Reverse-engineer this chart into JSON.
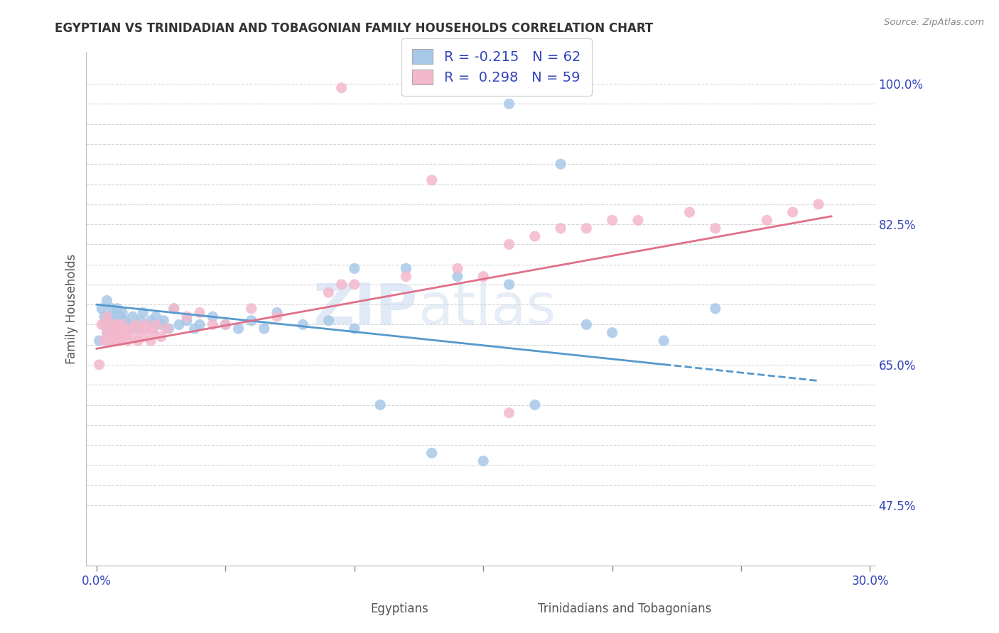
{
  "title": "EGYPTIAN VS TRINIDADIAN AND TOBAGONIAN FAMILY HOUSEHOLDS CORRELATION CHART",
  "source": "Source: ZipAtlas.com",
  "xlabel_egyptians": "Egyptians",
  "xlabel_trinidadians": "Trinidadians and Tobagonians",
  "ylabel": "Family Households",
  "watermark_part1": "ZIP",
  "watermark_part2": "atlas",
  "xmin": 0.0,
  "xmax": 0.3,
  "ymin": 0.4,
  "ymax": 1.03,
  "blue_color": "#a8c8e8",
  "pink_color": "#f4b8cc",
  "blue_line_color": "#5599cc",
  "pink_line_color": "#e07088",
  "R_egyptian": -0.215,
  "N_egyptian": 62,
  "R_trinidadian": 0.298,
  "N_trinidadian": 59,
  "legend_text_color": "#3344bb",
  "title_color": "#333333",
  "eg_x": [
    0.001,
    0.002,
    0.003,
    0.003,
    0.004,
    0.004,
    0.005,
    0.005,
    0.006,
    0.006,
    0.007,
    0.007,
    0.008,
    0.008,
    0.009,
    0.009,
    0.01,
    0.01,
    0.011,
    0.012,
    0.013,
    0.014,
    0.015,
    0.016,
    0.017,
    0.018,
    0.019,
    0.02,
    0.021,
    0.022,
    0.023,
    0.025,
    0.026,
    0.028,
    0.03,
    0.032,
    0.035,
    0.038,
    0.04,
    0.045,
    0.05,
    0.055,
    0.06,
    0.065,
    0.07,
    0.08,
    0.09,
    0.1,
    0.11,
    0.13,
    0.15,
    0.17,
    0.19,
    0.1,
    0.12,
    0.14,
    0.16,
    0.2,
    0.22,
    0.16,
    0.18,
    0.24
  ],
  "eg_y": [
    0.68,
    0.72,
    0.7,
    0.71,
    0.69,
    0.73,
    0.68,
    0.71,
    0.72,
    0.7,
    0.69,
    0.71,
    0.68,
    0.72,
    0.7,
    0.71,
    0.695,
    0.715,
    0.705,
    0.7,
    0.695,
    0.71,
    0.7,
    0.695,
    0.705,
    0.715,
    0.695,
    0.7,
    0.705,
    0.695,
    0.71,
    0.7,
    0.705,
    0.695,
    0.72,
    0.7,
    0.705,
    0.695,
    0.7,
    0.71,
    0.7,
    0.695,
    0.705,
    0.695,
    0.715,
    0.7,
    0.705,
    0.695,
    0.6,
    0.54,
    0.53,
    0.6,
    0.7,
    0.77,
    0.77,
    0.76,
    0.75,
    0.69,
    0.68,
    0.975,
    0.9,
    0.72
  ],
  "tr_x": [
    0.001,
    0.002,
    0.003,
    0.003,
    0.004,
    0.004,
    0.005,
    0.006,
    0.006,
    0.007,
    0.007,
    0.008,
    0.008,
    0.009,
    0.009,
    0.01,
    0.01,
    0.011,
    0.012,
    0.013,
    0.014,
    0.015,
    0.016,
    0.017,
    0.018,
    0.019,
    0.02,
    0.021,
    0.022,
    0.023,
    0.025,
    0.027,
    0.03,
    0.035,
    0.04,
    0.045,
    0.05,
    0.06,
    0.07,
    0.09,
    0.095,
    0.1,
    0.12,
    0.14,
    0.15,
    0.16,
    0.17,
    0.18,
    0.19,
    0.2,
    0.21,
    0.23,
    0.24,
    0.26,
    0.27,
    0.28,
    0.095,
    0.13,
    0.16
  ],
  "tr_y": [
    0.65,
    0.7,
    0.68,
    0.7,
    0.69,
    0.71,
    0.68,
    0.69,
    0.7,
    0.68,
    0.695,
    0.685,
    0.7,
    0.68,
    0.695,
    0.685,
    0.7,
    0.69,
    0.68,
    0.695,
    0.685,
    0.7,
    0.68,
    0.695,
    0.685,
    0.7,
    0.695,
    0.68,
    0.69,
    0.7,
    0.685,
    0.695,
    0.72,
    0.71,
    0.715,
    0.7,
    0.7,
    0.72,
    0.71,
    0.74,
    0.75,
    0.75,
    0.76,
    0.77,
    0.76,
    0.8,
    0.81,
    0.82,
    0.82,
    0.83,
    0.83,
    0.84,
    0.82,
    0.83,
    0.84,
    0.85,
    0.995,
    0.88,
    0.59
  ],
  "blue_line_x": [
    0.0,
    0.28
  ],
  "blue_line_y": [
    0.725,
    0.63
  ],
  "pink_line_x": [
    0.0,
    0.285
  ],
  "pink_line_y": [
    0.67,
    0.835
  ]
}
